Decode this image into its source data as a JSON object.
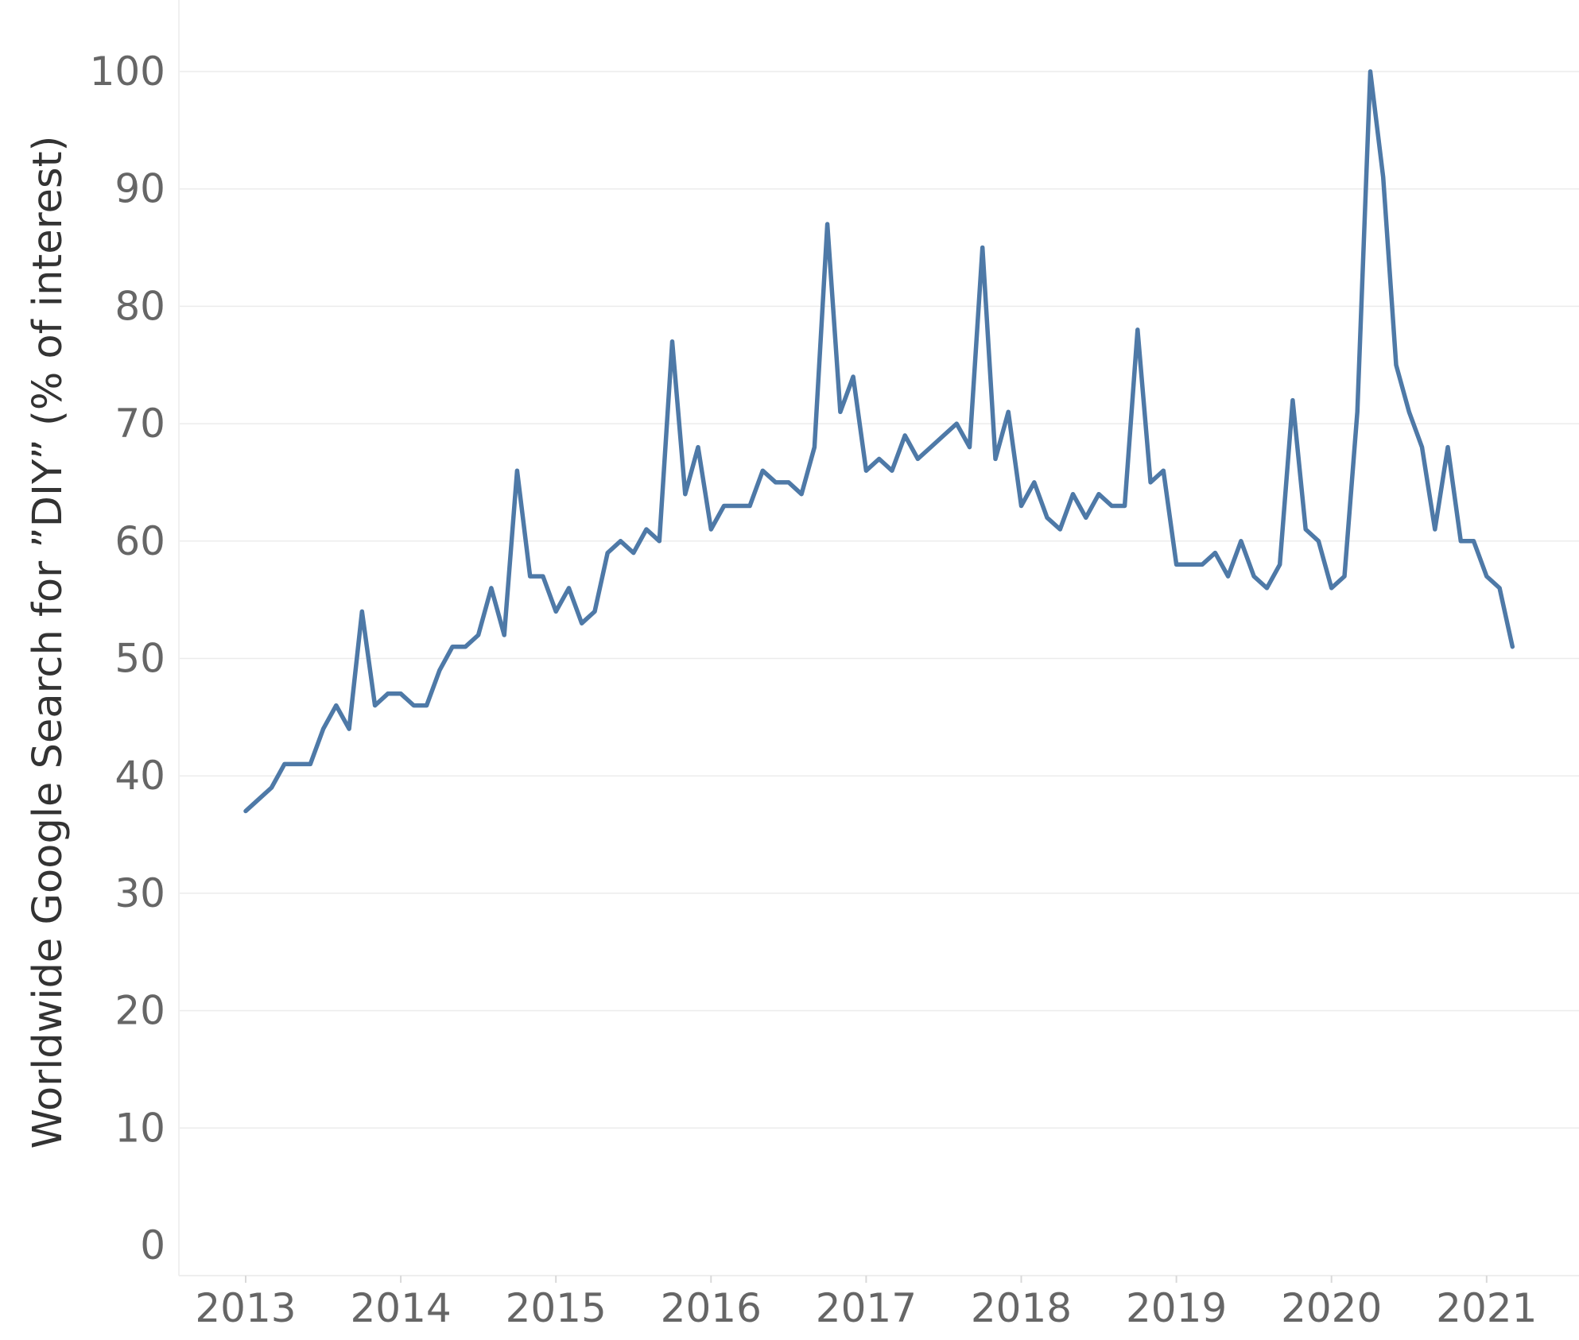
{
  "chart_data": {
    "type": "line",
    "title": "",
    "xlabel": "",
    "ylabel": "Worldwide Google Search for ”DIY” (% of interest)",
    "ylim": [
      0,
      100
    ],
    "y_ticks": [
      "0",
      "10",
      "20",
      "30",
      "40",
      "50",
      "60",
      "70",
      "80",
      "90",
      "100"
    ],
    "x_ticks": [
      "2013",
      "2014",
      "2015",
      "2016",
      "2017",
      "2018",
      "2019",
      "2020",
      "2021"
    ],
    "grid": "horizontal",
    "legend": "none",
    "colors": {
      "line": "#4e79a7",
      "grid": "#ececec",
      "tick_label": "#666666",
      "axis_title": "#333333"
    },
    "x": [
      "2013-01",
      "2013-02",
      "2013-03",
      "2013-04",
      "2013-05",
      "2013-06",
      "2013-07",
      "2013-08",
      "2013-09",
      "2013-10",
      "2013-11",
      "2013-12",
      "2014-01",
      "2014-02",
      "2014-03",
      "2014-04",
      "2014-05",
      "2014-06",
      "2014-07",
      "2014-08",
      "2014-09",
      "2014-10",
      "2014-11",
      "2014-12",
      "2015-01",
      "2015-02",
      "2015-03",
      "2015-04",
      "2015-05",
      "2015-06",
      "2015-07",
      "2015-08",
      "2015-09",
      "2015-10",
      "2015-11",
      "2015-12",
      "2016-01",
      "2016-02",
      "2016-03",
      "2016-04",
      "2016-05",
      "2016-06",
      "2016-07",
      "2016-08",
      "2016-09",
      "2016-10",
      "2016-11",
      "2016-12",
      "2017-01",
      "2017-02",
      "2017-03",
      "2017-04",
      "2017-05",
      "2017-06",
      "2017-07",
      "2017-08",
      "2017-09",
      "2017-10",
      "2017-11",
      "2017-12",
      "2018-01",
      "2018-02",
      "2018-03",
      "2018-04",
      "2018-05",
      "2018-06",
      "2018-07",
      "2018-08",
      "2018-09",
      "2018-10",
      "2018-11",
      "2018-12",
      "2019-01",
      "2019-02",
      "2019-03",
      "2019-04",
      "2019-05",
      "2019-06",
      "2019-07",
      "2019-08",
      "2019-09",
      "2019-10",
      "2019-11",
      "2019-12",
      "2020-01",
      "2020-02",
      "2020-03",
      "2020-04",
      "2020-05",
      "2020-06",
      "2020-07",
      "2020-08",
      "2020-09",
      "2020-10",
      "2020-11",
      "2020-12",
      "2021-01",
      "2021-02",
      "2021-03"
    ],
    "series": [
      {
        "values": [
          37,
          38,
          39,
          41,
          41,
          41,
          44,
          46,
          44,
          54,
          46,
          47,
          47,
          46,
          46,
          49,
          51,
          51,
          52,
          56,
          52,
          66,
          57,
          57,
          54,
          56,
          53,
          54,
          59,
          60,
          59,
          61,
          60,
          77,
          64,
          68,
          61,
          63,
          63,
          63,
          66,
          65,
          65,
          64,
          68,
          87,
          71,
          74,
          66,
          67,
          66,
          69,
          67,
          68,
          69,
          70,
          68,
          85,
          67,
          71,
          63,
          65,
          62,
          61,
          64,
          62,
          64,
          63,
          63,
          78,
          65,
          66,
          58,
          58,
          58,
          59,
          57,
          60,
          57,
          56,
          58,
          72,
          61,
          60,
          56,
          57,
          71,
          100,
          91,
          75,
          71,
          68,
          61,
          68,
          60,
          60,
          57,
          56,
          51
        ]
      }
    ]
  }
}
